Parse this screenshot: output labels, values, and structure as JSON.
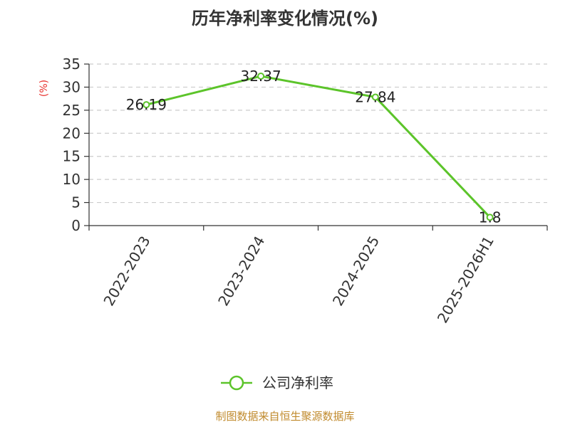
{
  "chart_data": {
    "type": "line",
    "title": "历年净利率变化情况(%)",
    "ylabel": "(%)",
    "xlabel": "",
    "categories": [
      "2022-2023",
      "2023-2024",
      "2024-2025",
      "2025-2026H1"
    ],
    "series": [
      {
        "name": "公司净利率",
        "values": [
          26.19,
          32.37,
          27.84,
          1.8
        ],
        "labels": [
          "26.19",
          "32.37",
          "27.84",
          "1.8"
        ]
      }
    ],
    "ylim": [
      0,
      35
    ],
    "yticks": [
      0,
      5,
      10,
      15,
      20,
      25,
      30,
      35
    ],
    "grid": true,
    "legend": "bottom-center",
    "line_color": "#5cc42a"
  },
  "footer": {
    "source": "制图数据来自恒生聚源数据库"
  }
}
